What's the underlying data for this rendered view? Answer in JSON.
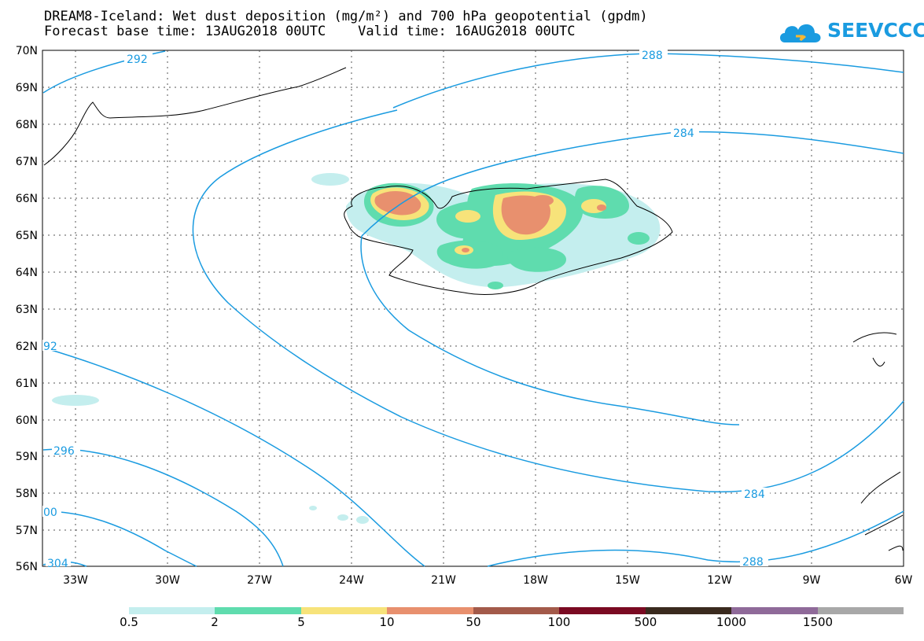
{
  "title": {
    "line1": "DREAM8-Iceland: Wet dust deposition (mg/m²) and 700 hPa geopotential (gpdm)",
    "line2": "Forecast base time: 13AUG2018 00UTC    Valid time: 16AUG2018 00UTC"
  },
  "logo": {
    "text": "SEEVCCC",
    "icon": "cloud-icon"
  },
  "map": {
    "lat_labels": [
      "70N",
      "69N",
      "68N",
      "67N",
      "66N",
      "65N",
      "64N",
      "63N",
      "62N",
      "61N",
      "60N",
      "59N",
      "58N",
      "57N",
      "56N"
    ],
    "lon_labels": [
      "33W",
      "30W",
      "27W",
      "24W",
      "21W",
      "18W",
      "15W",
      "12W",
      "9W",
      "6W"
    ],
    "contour_labels": [
      "292",
      "288",
      "284",
      "92",
      "296",
      "284",
      "00",
      "288",
      "304"
    ],
    "contour_color": "#1a9be0",
    "region": "Iceland"
  },
  "colorbar": {
    "labels": [
      "0.5",
      "2",
      "5",
      "10",
      "50",
      "100",
      "500",
      "1000",
      "1500"
    ],
    "colors": [
      "#c4eeee",
      "#5fdcae",
      "#f7e37a",
      "#e8906e",
      "#a35a4a",
      "#7a0a22",
      "#3a2a1e",
      "#8f6a99",
      "#a8a8a8"
    ]
  }
}
